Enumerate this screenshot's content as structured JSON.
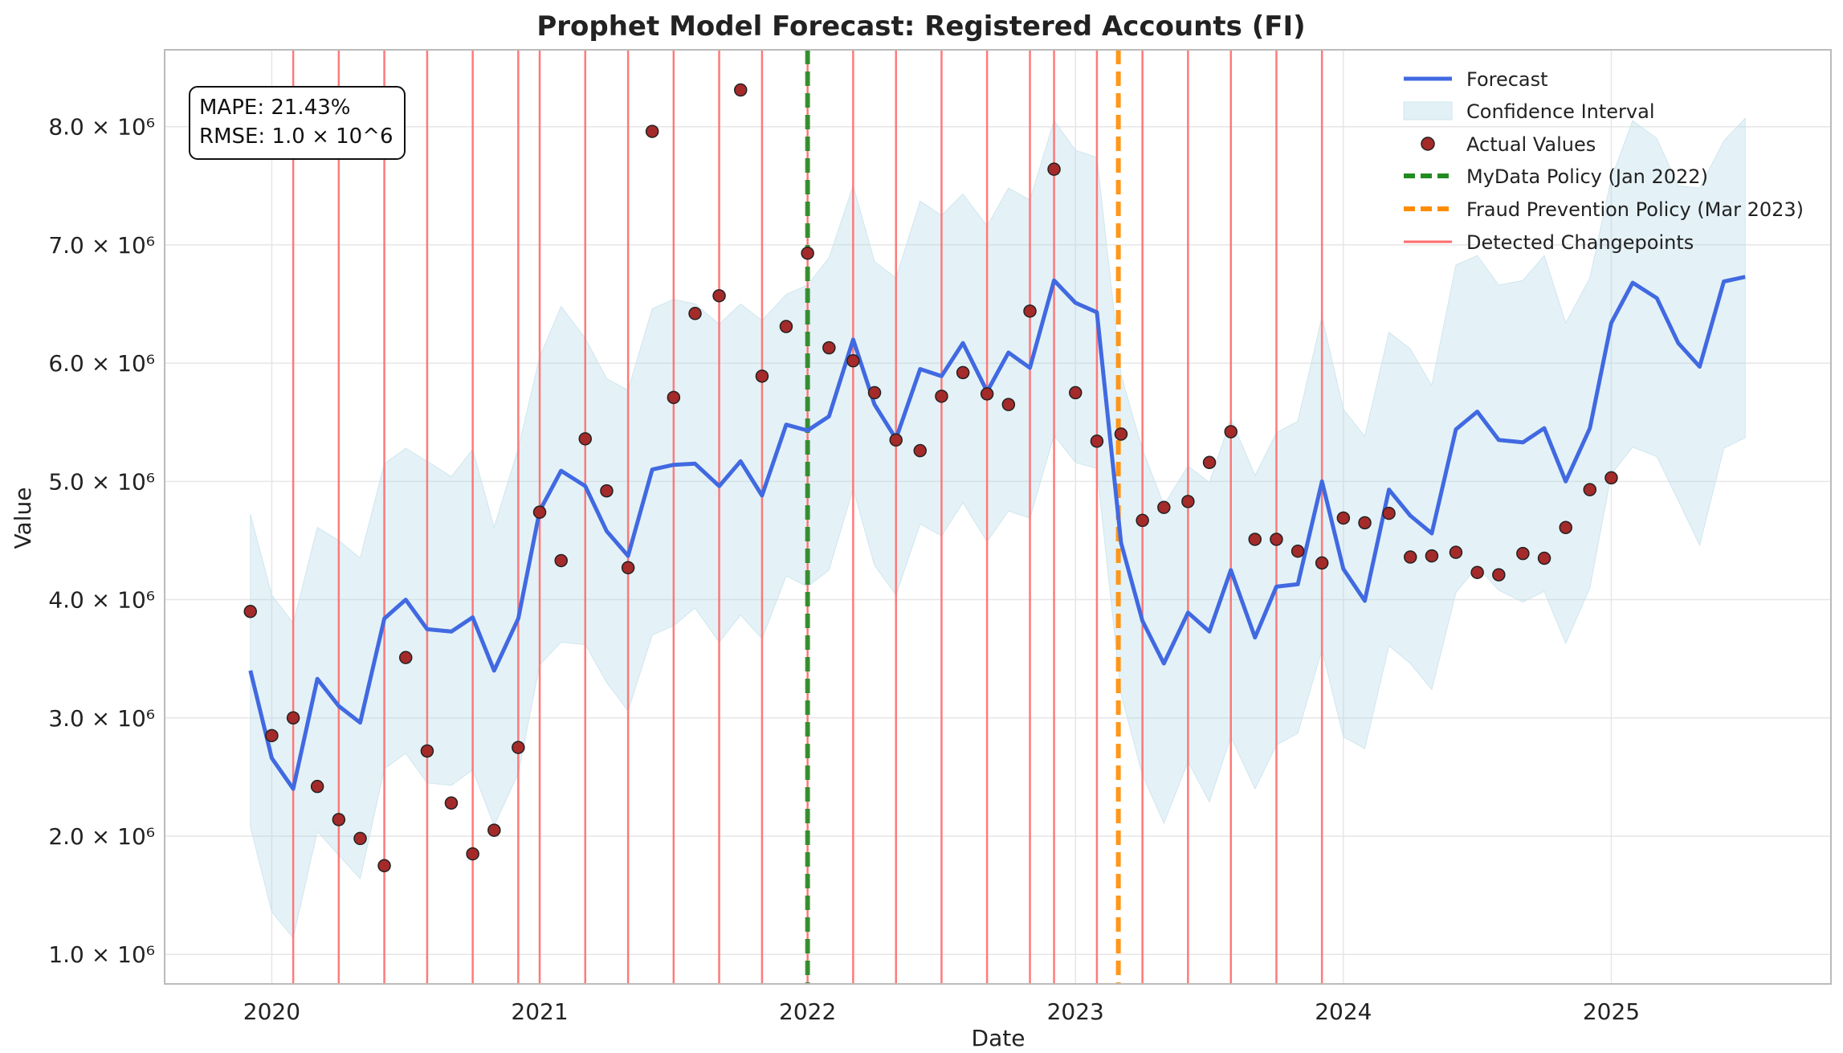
{
  "chart_data": {
    "type": "line",
    "title": "Prophet Model Forecast: Registered Accounts (FI)",
    "xlabel": "Date",
    "ylabel": "Value",
    "xlim": [
      2019.6,
      2025.82
    ],
    "ylim": [
      750000,
      8650000
    ],
    "x_ticks": [
      2020,
      2021,
      2022,
      2023,
      2024,
      2025
    ],
    "x_tick_labels": [
      "2020",
      "2021",
      "2022",
      "2023",
      "2024",
      "2025"
    ],
    "y_ticks": [
      1000000,
      2000000,
      3000000,
      4000000,
      5000000,
      6000000,
      7000000,
      8000000
    ],
    "y_tick_labels": [
      "1.0 × 10⁶",
      "2.0 × 10⁶",
      "3.0 × 10⁶",
      "4.0 × 10⁶",
      "5.0 × 10⁶",
      "6.0 × 10⁶",
      "7.0 × 10⁶",
      "8.0 × 10⁶"
    ],
    "grid": true,
    "forecast": {
      "name": "Forecast",
      "color": "#4169e1",
      "x": [
        2019.92,
        2020.0,
        2020.08,
        2020.17,
        2020.25,
        2020.33,
        2020.42,
        2020.5,
        2020.58,
        2020.67,
        2020.75,
        2020.83,
        2020.92,
        2021.0,
        2021.08,
        2021.17,
        2021.25,
        2021.33,
        2021.42,
        2021.5,
        2021.58,
        2021.67,
        2021.75,
        2021.83,
        2021.92,
        2022.0,
        2022.08,
        2022.17,
        2022.25,
        2022.33,
        2022.42,
        2022.5,
        2022.58,
        2022.67,
        2022.75,
        2022.83,
        2022.92,
        2023.0,
        2023.08,
        2023.17,
        2023.25,
        2023.33,
        2023.42,
        2023.5,
        2023.58,
        2023.67,
        2023.75,
        2023.83,
        2023.92,
        2024.0,
        2024.08,
        2024.17,
        2024.25,
        2024.33,
        2024.42,
        2024.5,
        2024.58,
        2024.67,
        2024.75,
        2024.83,
        2024.92,
        2025.0,
        2025.08,
        2025.17,
        2025.25,
        2025.33,
        2025.42,
        2025.5
      ],
      "y": [
        3400000,
        2660000,
        2400000,
        3330000,
        3100000,
        2960000,
        3840000,
        4000000,
        3750000,
        3730000,
        3850000,
        3400000,
        3840000,
        4750000,
        5090000,
        4960000,
        4580000,
        4370000,
        5100000,
        5140000,
        5150000,
        4960000,
        5170000,
        4880000,
        5480000,
        5430000,
        5550000,
        6200000,
        5650000,
        5360000,
        5950000,
        5890000,
        6170000,
        5760000,
        6090000,
        5960000,
        6700000,
        6510000,
        6430000,
        4480000,
        3820000,
        3460000,
        3890000,
        3730000,
        4250000,
        3680000,
        4110000,
        4130000,
        5000000,
        4260000,
        3990000,
        4930000,
        4710000,
        4560000,
        5440000,
        5590000,
        5350000,
        5330000,
        5450000,
        5000000,
        5450000,
        6340000,
        6680000,
        6550000,
        6170000,
        5970000,
        6690000,
        6730000
      ]
    },
    "confidence_interval": {
      "name": "Confidence Interval",
      "color": "#add8e6",
      "upper": [
        4720000,
        4040000,
        3800000,
        4610000,
        4500000,
        4350000,
        5150000,
        5280000,
        5170000,
        5040000,
        5270000,
        4610000,
        5280000,
        6050000,
        6480000,
        6210000,
        5870000,
        5770000,
        6460000,
        6540000,
        6500000,
        6330000,
        6500000,
        6360000,
        6580000,
        6660000,
        6890000,
        7500000,
        6860000,
        6720000,
        7370000,
        7250000,
        7430000,
        7160000,
        7480000,
        7380000,
        8050000,
        7800000,
        7740000,
        5900000,
        5270000,
        4800000,
        5130000,
        4990000,
        5530000,
        5050000,
        5410000,
        5510000,
        6390000,
        5610000,
        5380000,
        6260000,
        6120000,
        5810000,
        6830000,
        6910000,
        6660000,
        6700000,
        6910000,
        6340000,
        6720000,
        7560000,
        8050000,
        7900000,
        7500000,
        7480000,
        7880000,
        8070000
      ],
      "lower": [
        2080000,
        1360000,
        1140000,
        2040000,
        1840000,
        1640000,
        2570000,
        2700000,
        2450000,
        2430000,
        2560000,
        2090000,
        2530000,
        3450000,
        3640000,
        3620000,
        3300000,
        3060000,
        3700000,
        3780000,
        3930000,
        3640000,
        3870000,
        3670000,
        4200000,
        4110000,
        4250000,
        4940000,
        4290000,
        4040000,
        4640000,
        4540000,
        4820000,
        4490000,
        4750000,
        4690000,
        5390000,
        5160000,
        5110000,
        3200000,
        2520000,
        2110000,
        2630000,
        2290000,
        2840000,
        2400000,
        2770000,
        2870000,
        3580000,
        2840000,
        2740000,
        3610000,
        3460000,
        3240000,
        4060000,
        4280000,
        4080000,
        3980000,
        4070000,
        3630000,
        4100000,
        5060000,
        5290000,
        5210000,
        4840000,
        4460000,
        5280000,
        5370000
      ]
    },
    "actual": {
      "name": "Actual Values",
      "color": "#a52a2a",
      "x": [
        2019.92,
        2020.0,
        2020.08,
        2020.17,
        2020.25,
        2020.33,
        2020.42,
        2020.5,
        2020.58,
        2020.67,
        2020.75,
        2020.83,
        2020.92,
        2021.0,
        2021.08,
        2021.17,
        2021.25,
        2021.33,
        2021.42,
        2021.5,
        2021.58,
        2021.67,
        2021.75,
        2021.83,
        2021.92,
        2022.0,
        2022.08,
        2022.17,
        2022.25,
        2022.33,
        2022.42,
        2022.5,
        2022.58,
        2022.67,
        2022.75,
        2022.83,
        2022.92,
        2023.0,
        2023.08,
        2023.17,
        2023.25,
        2023.33,
        2023.42,
        2023.5,
        2023.58,
        2023.67,
        2023.75,
        2023.83,
        2023.92,
        2024.0,
        2024.08,
        2024.17,
        2024.25,
        2024.33,
        2024.42,
        2024.5,
        2024.58,
        2024.67,
        2024.75,
        2024.83,
        2024.92,
        2025.0
      ],
      "y": [
        3900000,
        2850000,
        3000000,
        2420000,
        2140000,
        1980000,
        1750000,
        3510000,
        2720000,
        2280000,
        1850000,
        2050000,
        2750000,
        4740000,
        4330000,
        5360000,
        4920000,
        4270000,
        7960000,
        5710000,
        6420000,
        6570000,
        8310000,
        5890000,
        6310000,
        6930000,
        6130000,
        6020000,
        5750000,
        5350000,
        5260000,
        5720000,
        5920000,
        5740000,
        5650000,
        6440000,
        7640000,
        5750000,
        5340000,
        5400000,
        4670000,
        4780000,
        4830000,
        5160000,
        5420000,
        4510000,
        4510000,
        4410000,
        4310000,
        4690000,
        4650000,
        4730000,
        4360000,
        4370000,
        4400000,
        4230000,
        4210000,
        4390000,
        4350000,
        4610000,
        4930000,
        5030000
      ]
    },
    "policies": [
      {
        "name": "MyData Policy (Jan 2022)",
        "x": 2022.0,
        "color": "#228b22"
      },
      {
        "name": "Fraud Prevention Policy (Mar 2023)",
        "x": 2023.16,
        "color": "#ff8c00"
      }
    ],
    "changepoints": {
      "name": "Detected Changepoints",
      "color": "#ff6b6b",
      "x": [
        2020.08,
        2020.25,
        2020.42,
        2020.58,
        2020.75,
        2020.92,
        2021.0,
        2021.17,
        2021.33,
        2021.5,
        2021.67,
        2021.83,
        2022.0,
        2022.17,
        2022.33,
        2022.5,
        2022.67,
        2022.83,
        2022.92,
        2023.08,
        2023.25,
        2023.42,
        2023.58,
        2023.75,
        2023.92
      ]
    }
  },
  "stats": {
    "mape": "MAPE: 21.43%",
    "rmse": "RMSE: 1.0 × 10^6"
  },
  "legend": {
    "forecast": "Forecast",
    "ci": "Confidence Interval",
    "actual": "Actual Values",
    "mydata": "MyData Policy (Jan 2022)",
    "fraud": "Fraud Prevention Policy (Mar 2023)",
    "changepoints": "Detected Changepoints"
  }
}
